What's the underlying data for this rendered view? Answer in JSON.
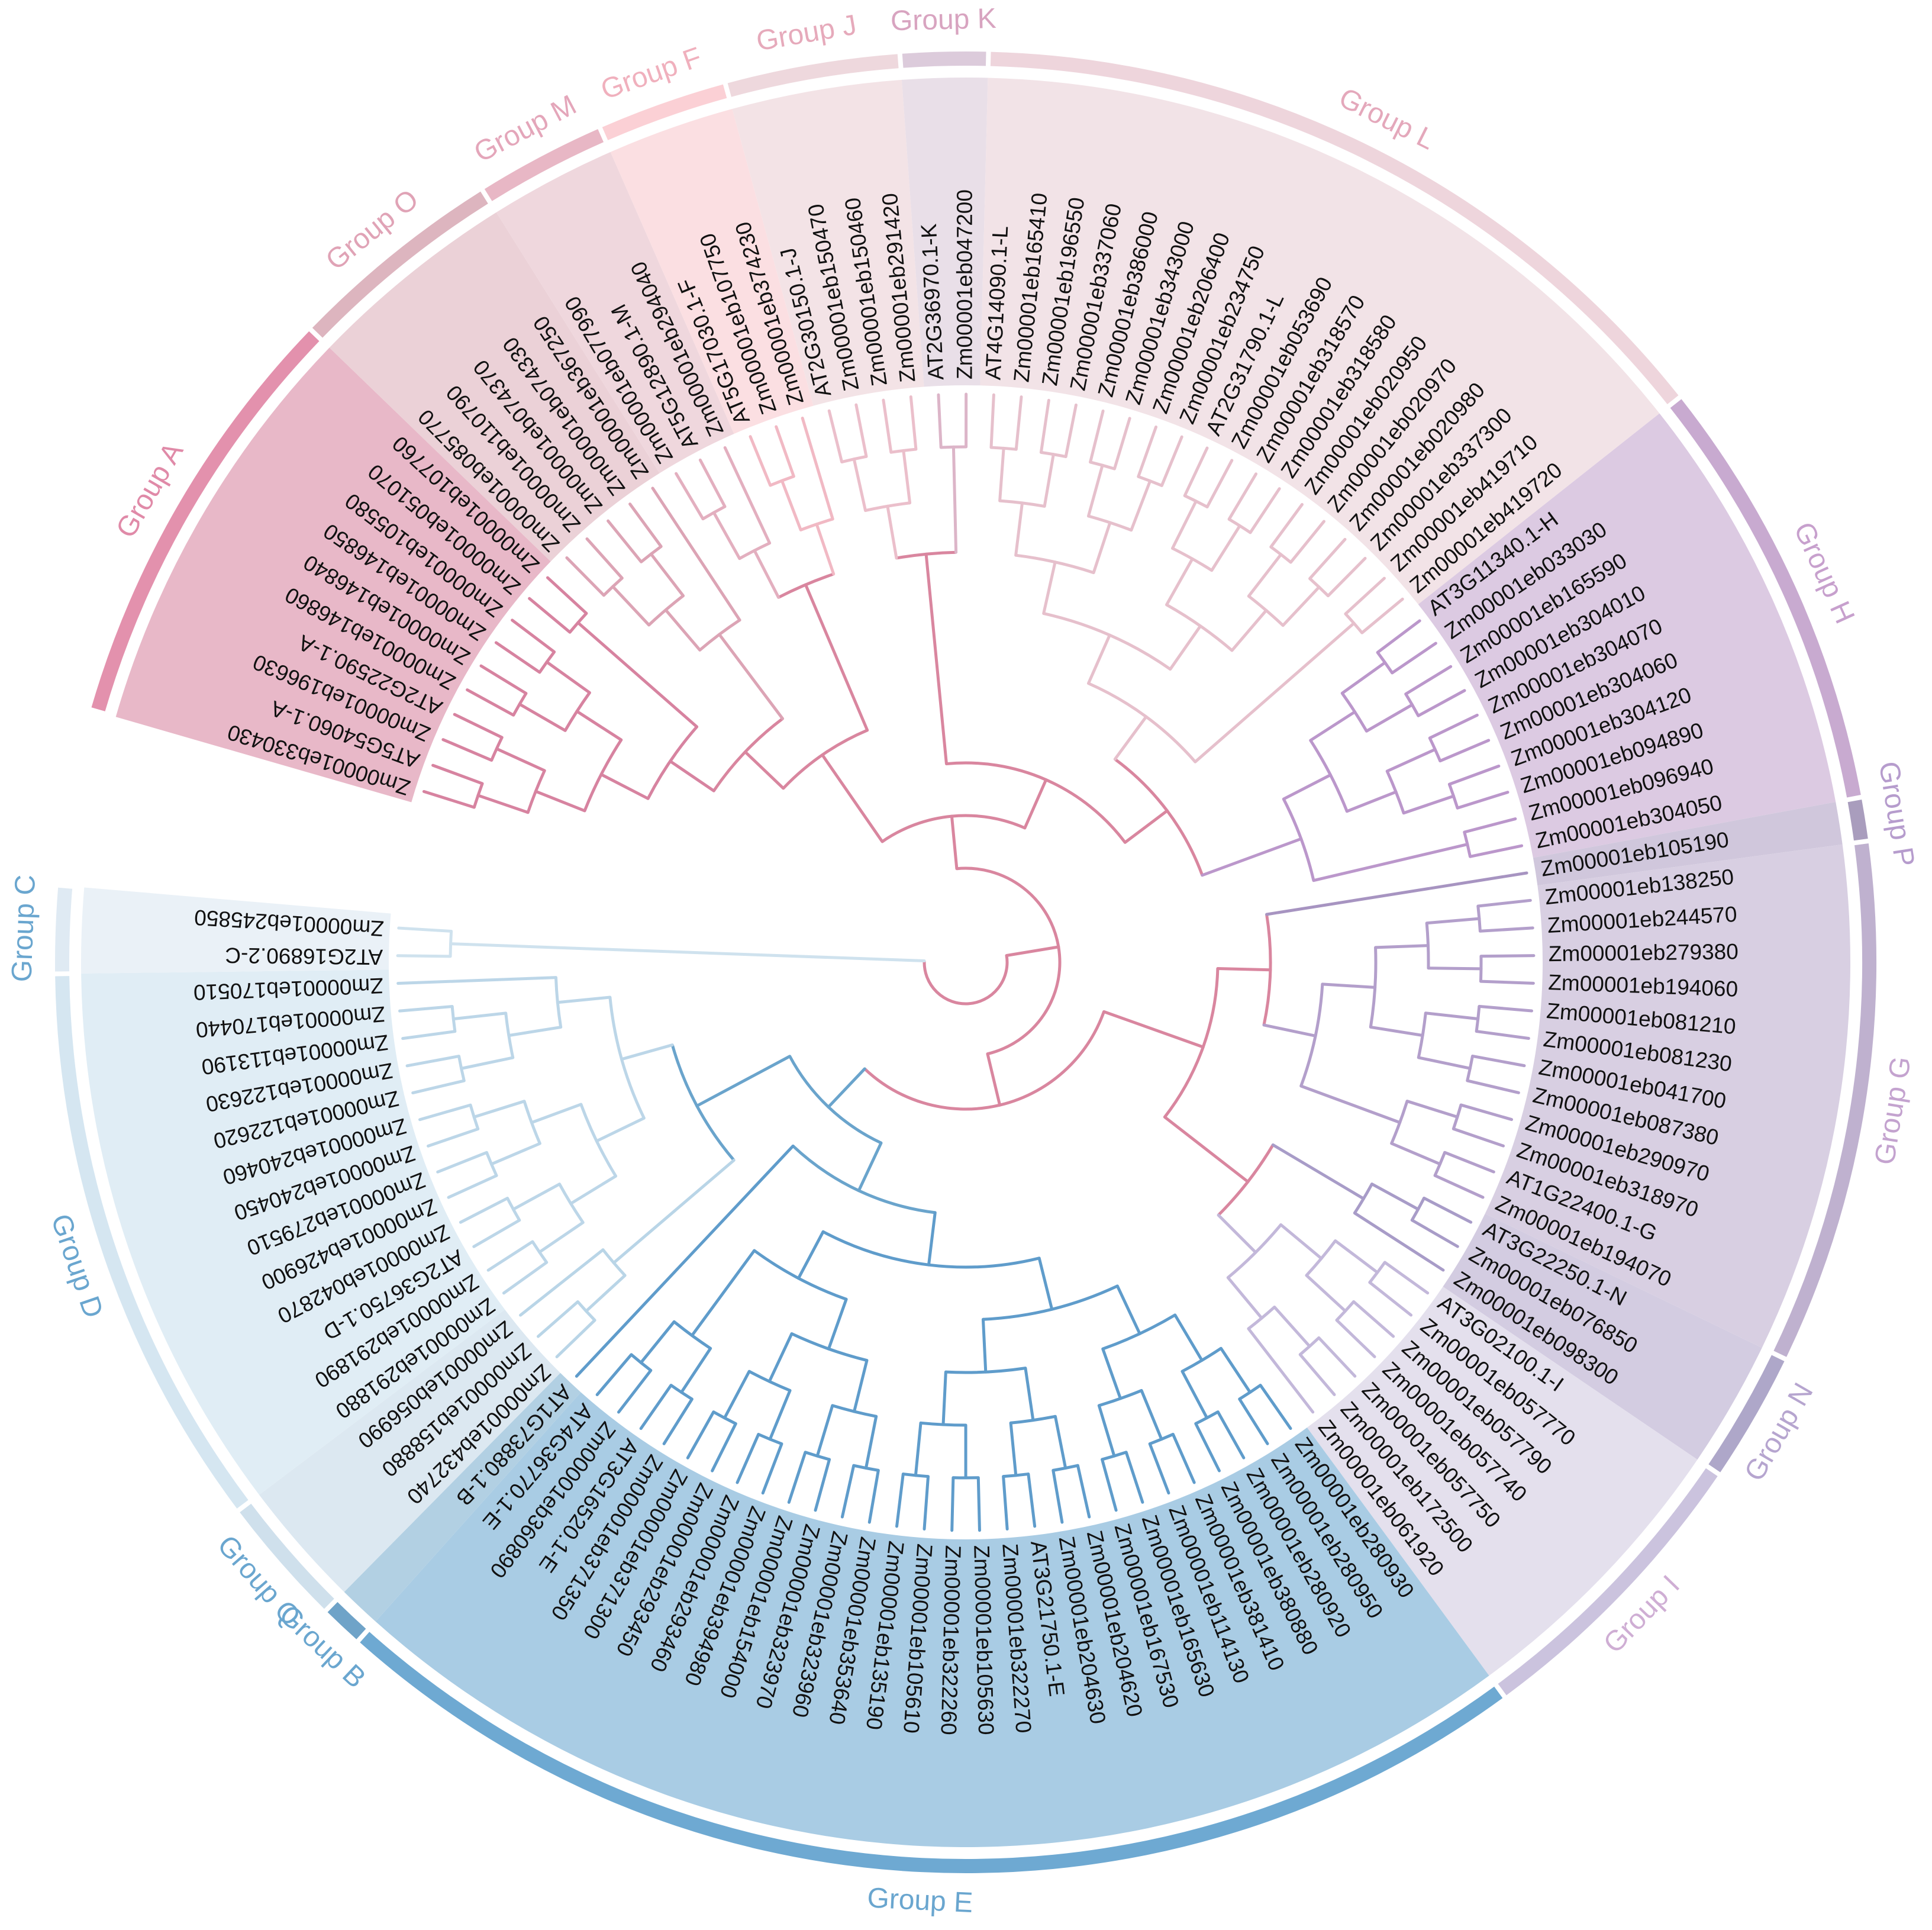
{
  "groups": [
    {
      "label": "Group A",
      "leaves": [
        "Zm00001eb330430",
        "AT5G54060.1-A",
        "Zm00001eb196630",
        "AT2G22590.1-A",
        "Zm00001eb146860",
        "Zm00001eb146840",
        "Zm00001eb146850",
        "Zm00001eb105580",
        "Zm00001eb051070",
        "Zm00001eb107760"
      ]
    },
    {
      "label": "Group O",
      "leaves": [
        "Zm00001eb085770",
        "Zm00001eb110790",
        "Zm00001eb074370",
        "Zm00001eb074330",
        "Zm00001eb367250"
      ]
    },
    {
      "label": "Group M",
      "leaves": [
        "Zm00001eb077990",
        "AT5G12890.1-M",
        "Zm00001eb294040"
      ]
    },
    {
      "label": "Group F",
      "leaves": [
        "AT5G17030.1-F",
        "Zm00001eb107750",
        "Zm00001eb374230"
      ]
    },
    {
      "label": "Group J",
      "leaves": [
        "AT2G30150.1-J",
        "Zm00001eb150470",
        "Zm00001eb150460",
        "Zm00001eb291420"
      ]
    },
    {
      "label": "Group K",
      "leaves": [
        "AT2G36970.1-K",
        "Zm00001eb047200"
      ]
    },
    {
      "label": "Group L",
      "leaves": [
        "AT4G14090.1-L",
        "Zm00001eb165410",
        "Zm00001eb196550",
        "Zm00001eb337060",
        "Zm00001eb386000",
        "Zm00001eb343000",
        "Zm00001eb206400",
        "Zm00001eb234750",
        "AT2G31790.1-L",
        "Zm00001eb053690",
        "Zm00001eb318570",
        "Zm00001eb318580",
        "Zm00001eb020950",
        "Zm00001eb020970",
        "Zm00001eb020980",
        "Zm00001eb337300",
        "Zm00001eb419710",
        "Zm00001eb419720"
      ]
    },
    {
      "label": "Group H",
      "leaves": [
        "AT3G11340.1-H",
        "Zm00001eb033030",
        "Zm00001eb165590",
        "Zm00001eb304010",
        "Zm00001eb304070",
        "Zm00001eb304060",
        "Zm00001eb304120",
        "Zm00001eb094890",
        "Zm00001eb096940",
        "Zm00001eb304050"
      ]
    },
    {
      "label": "Group P",
      "leaves": [
        "Zm00001eb105190"
      ]
    },
    {
      "label": "Group G",
      "leaves": [
        "Zm00001eb138250",
        "Zm00001eb244570",
        "Zm00001eb279380",
        "Zm00001eb194060",
        "Zm00001eb081210",
        "Zm00001eb081230",
        "Zm00001eb041700",
        "Zm00001eb087380",
        "Zm00001eb290970",
        "Zm00001eb318970",
        "AT1G22400.1-G",
        "Zm00001eb194070"
      ]
    },
    {
      "label": "Group N",
      "leaves": [
        "AT3G22250.1-N",
        "Zm00001eb076850",
        "Zm00001eb098300"
      ]
    },
    {
      "label": "Group I",
      "leaves": [
        "AT3G02100.1-I",
        "Zm00001eb057770",
        "Zm00001eb057790",
        "Zm00001eb057740",
        "Zm00001eb057750",
        "Zm00001eb172500",
        "Zm00001eb061920"
      ]
    },
    {
      "label": "Group E",
      "leaves": [
        "Zm00001eb280930",
        "Zm00001eb280950",
        "Zm00001eb280920",
        "Zm00001eb380880",
        "Zm00001eb381410",
        "Zm00001eb114130",
        "Zm00001eb165630",
        "Zm00001eb167530",
        "Zm00001eb204620",
        "Zm00001eb204630",
        "AT3G21750.1-E",
        "Zm00001eb322270",
        "Zm00001eb105630",
        "Zm00001eb322260",
        "Zm00001eb105610",
        "Zm00001eb135190",
        "Zm00001eb353640",
        "Zm00001eb323960",
        "Zm00001eb323970",
        "Zm00001eb154000",
        "Zm00001eb394980",
        "Zm00001eb293460",
        "Zm00001eb293450",
        "Zm00001eb371300",
        "Zm00001eb371350",
        "AT3G16520.1-E",
        "Zm00001eb360890",
        "AT4G36770.1-E"
      ]
    },
    {
      "label": "Group B",
      "leaves": [
        "AT1G73880.1-B"
      ]
    },
    {
      "label": "Group Q",
      "leaves": [
        "Zm00001eb432740",
        "Zm00001eb158880",
        "Zm00001eb056990"
      ]
    },
    {
      "label": "Group D",
      "leaves": [
        "Zm00001eb291880",
        "Zm00001eb291890",
        "AT2G36750.1-D",
        "Zm00001eb042870",
        "Zm00001eb426900",
        "Zm00001eb279510",
        "Zm00001eb240450",
        "Zm00001eb240460",
        "Zm00001eb122620",
        "Zm00001eb122630",
        "Zm00001eb113190",
        "Zm00001eb170440",
        "Zm00001eb170510"
      ]
    },
    {
      "label": "Group C",
      "leaves": [
        "AT2G16890.2-C",
        "Zm00001eb245850"
      ]
    }
  ]
}
